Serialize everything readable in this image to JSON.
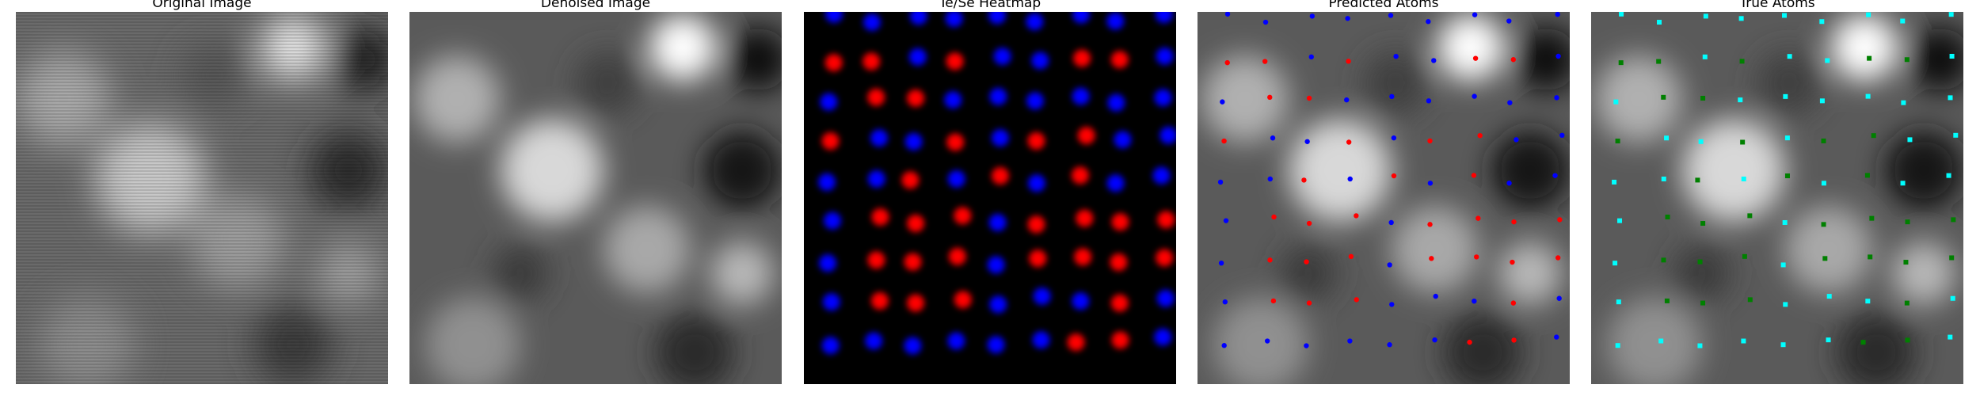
{
  "panels": [
    {
      "title": "Original Image"
    },
    {
      "title": "Denoised Image"
    },
    {
      "title": "Te/Se Heatmap"
    },
    {
      "title": "Predicted Atoms"
    },
    {
      "title": "True Atoms"
    }
  ],
  "colors": {
    "te": "#ff0000",
    "se": "#0000ff",
    "true_te": "#00ffff",
    "true_se": "#008000",
    "background": "#000000"
  },
  "atom_grid": {
    "columns": 9,
    "rows": 9,
    "pattern": [
      "BBBBBBBBB",
      "RRBRBBRRB",
      "BRRBBBBBB",
      "RBBRBRRBB",
      "BBRBRBRBB",
      "BRRRBRRRR",
      "BRRRBRRRR",
      "BRRRBBBRB",
      "BBBBBBRRB"
    ]
  }
}
